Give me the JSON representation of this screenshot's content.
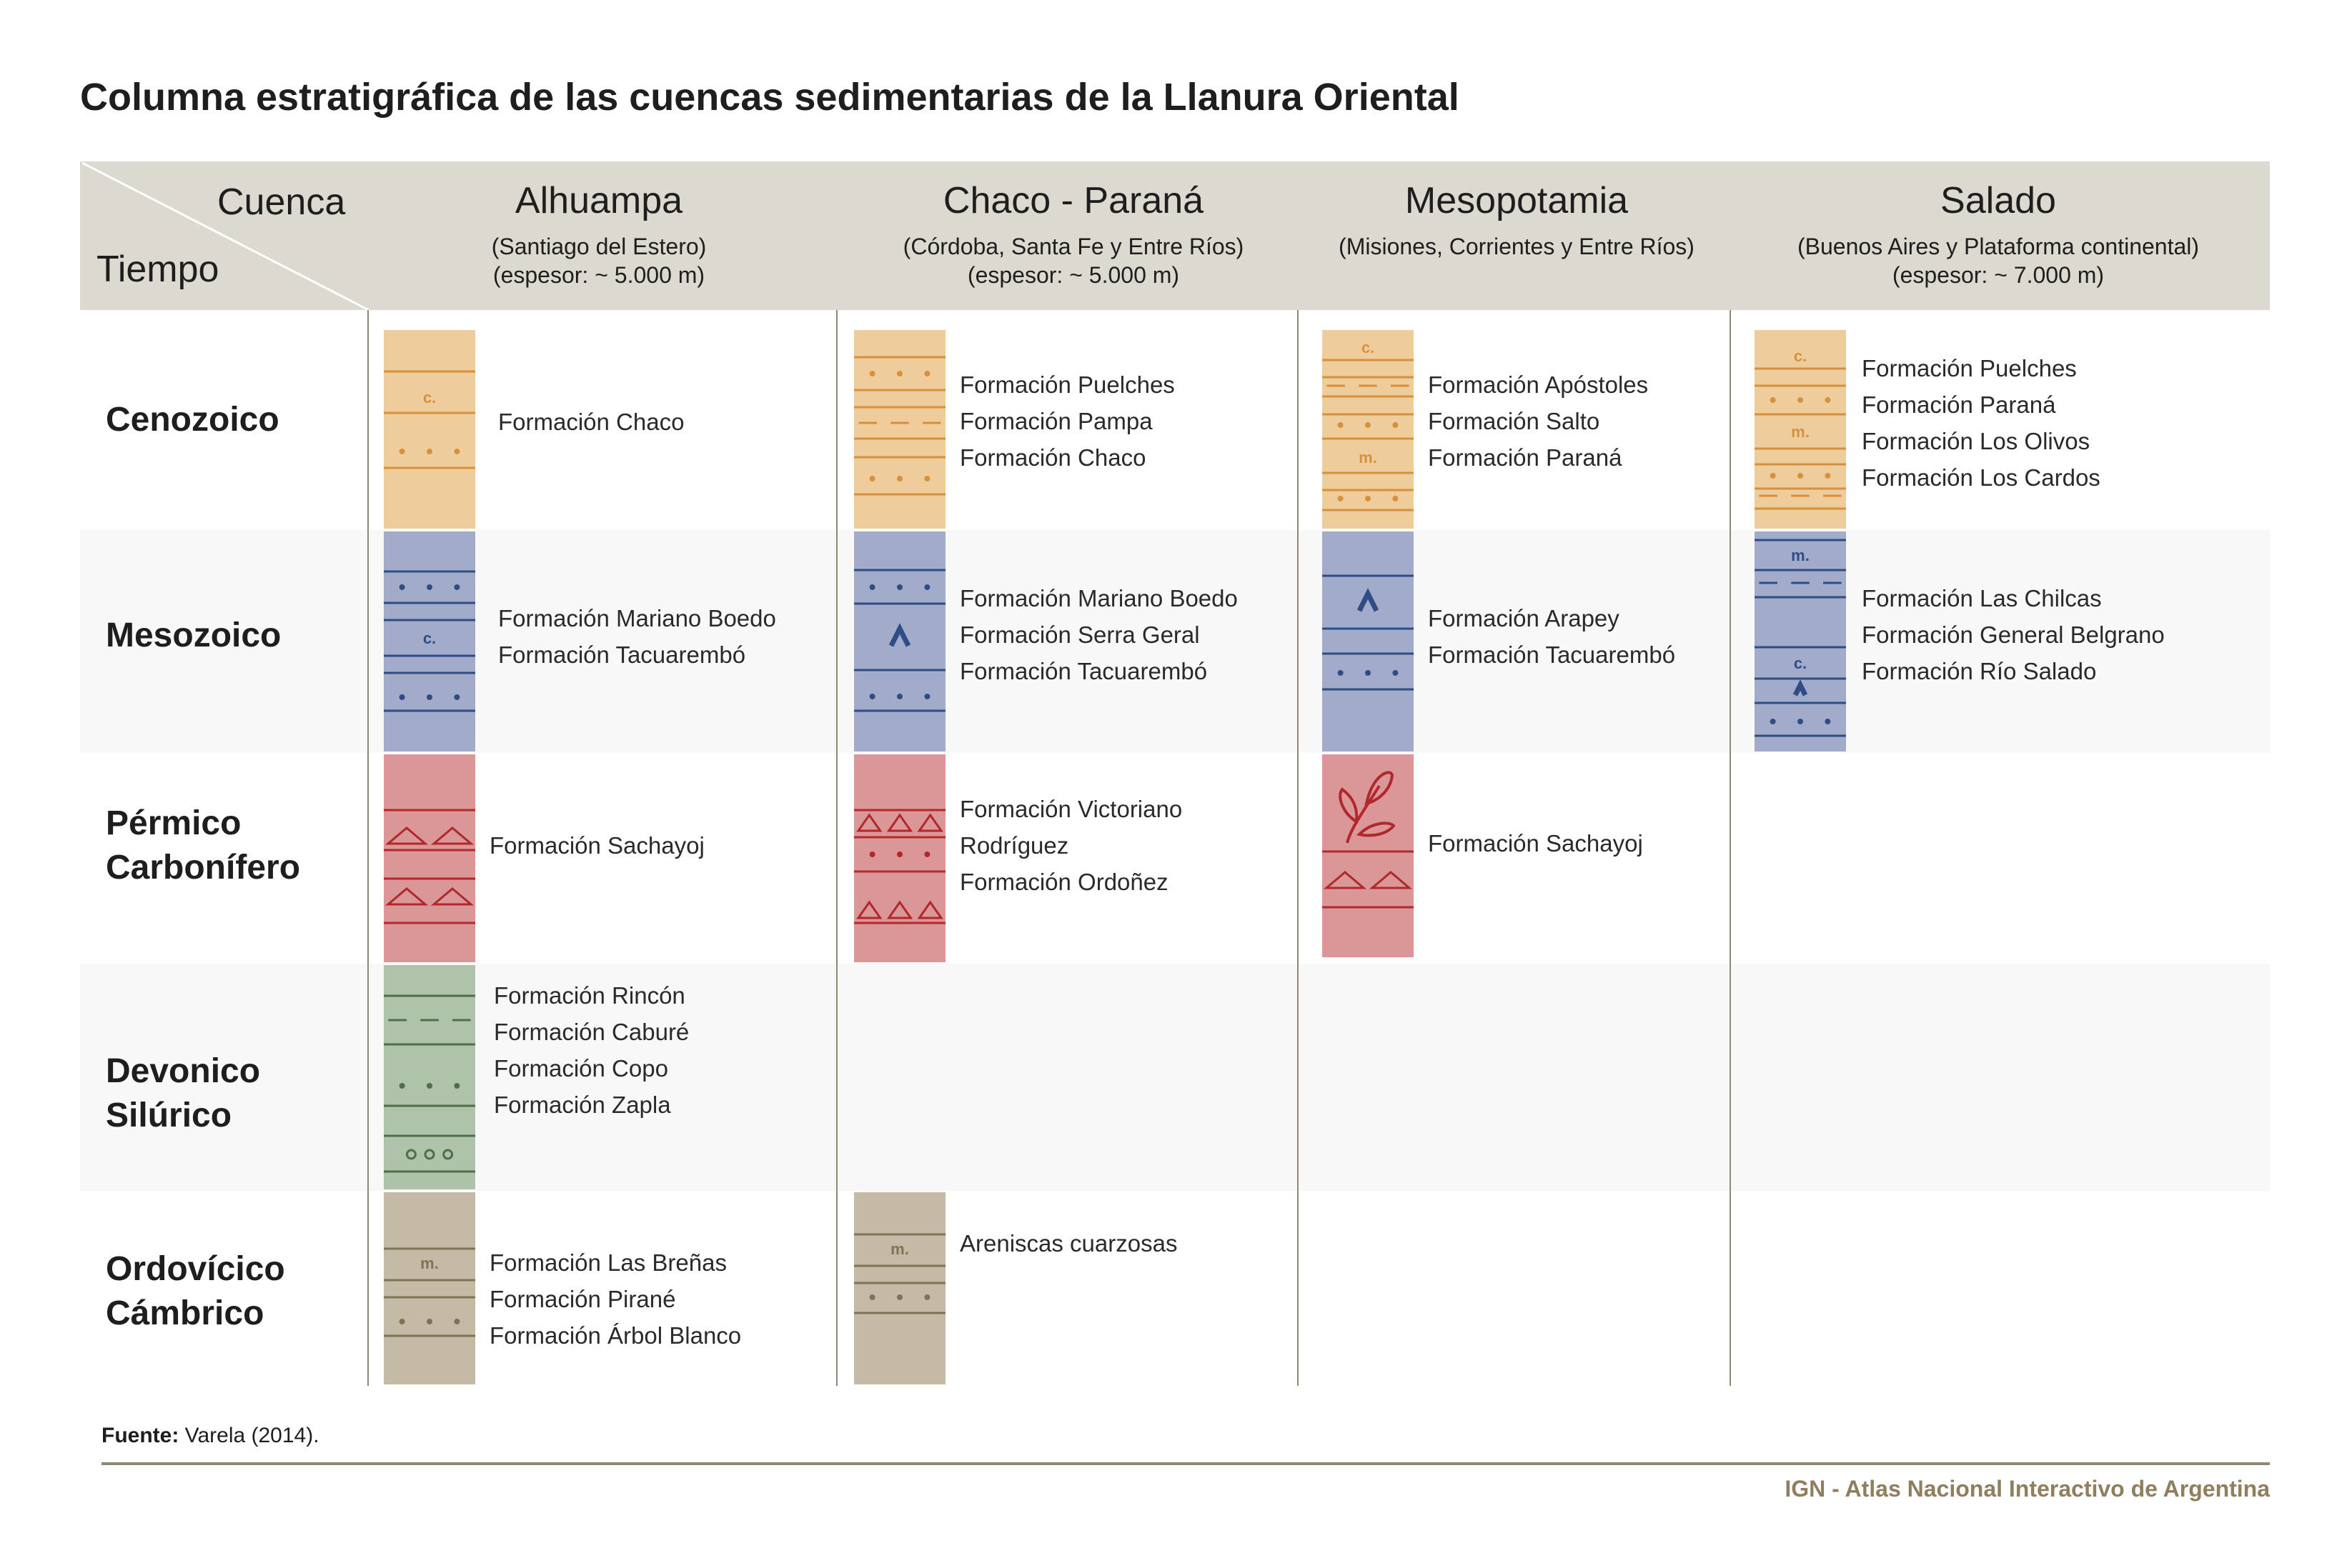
{
  "title": "Columna estratigráfica de las cuencas sedimentarias de la Llanura Oriental",
  "header": {
    "cuenca": "Cuenca",
    "tiempo": "Tiempo"
  },
  "basins": [
    {
      "name": "Alhuampa",
      "region": "(Santiago del Estero)",
      "thickness": "(espesor: ~ 5.000 m)"
    },
    {
      "name": "Chaco - Paraná",
      "region": "(Córdoba, Santa Fe y Entre Ríos)",
      "thickness": "(espesor: ~ 5.000 m)"
    },
    {
      "name": "Mesopotamia",
      "region": "(Misiones, Corrientes y Entre Ríos)",
      "thickness": ""
    },
    {
      "name": "Salado",
      "region": "(Buenos Aires y Plataforma continental)",
      "thickness": "(espesor: ~ 7.000 m)"
    }
  ],
  "eras": [
    {
      "line1": "Cenozoico",
      "line2": ""
    },
    {
      "line1": "Mesozoico",
      "line2": ""
    },
    {
      "line1": "Pérmico",
      "line2": "Carbonífero"
    },
    {
      "line1": "Devonico",
      "line2": "Silúrico"
    },
    {
      "line1": "Ordovícico",
      "line2": "Cámbrico"
    }
  ],
  "formations": {
    "alhuampa": {
      "cenozoico": [
        "Formación Chaco"
      ],
      "mesozoico": [
        "Formación Mariano Boedo",
        "Formación Tacuarembó"
      ],
      "permico": [
        "Formación Sachayoj"
      ],
      "devonico": [
        "Formación Rincón",
        "Formación Caburé",
        "Formación Copo",
        "Formación Zapla"
      ],
      "ordovicico": [
        "Formación Las Breñas",
        "Formación Pirané",
        "Formación Árbol Blanco"
      ]
    },
    "chaco": {
      "cenozoico": [
        "Formación Puelches",
        "Formación Pampa",
        "Formación Chaco"
      ],
      "mesozoico": [
        "Formación Mariano Boedo",
        "Formación Serra Geral",
        "Formación Tacuarembó"
      ],
      "permico": [
        "Formación Victoriano",
        "Rodríguez",
        "Formación Ordoñez"
      ],
      "ordovicico": [
        "Areniscas cuarzosas"
      ]
    },
    "mesopotamia": {
      "cenozoico": [
        "Formación Apóstoles",
        "Formación Salto",
        "Formación Paraná"
      ],
      "mesozoico": [
        "Formación Arapey",
        "Formación Tacuarembó"
      ],
      "permico": [
        "Formación Sachayoj"
      ]
    },
    "salado": {
      "cenozoico": [
        "Formación Puelches",
        "Formación Paraná",
        "Formación Los Olivos",
        "Formación Los Cardos"
      ],
      "mesozoico": [
        "Formación Las Chilcas",
        "Formación General Belgrano",
        "Formación Río Salado"
      ]
    }
  },
  "symbols": {
    "conglomerado": "c.",
    "marga": "m.",
    "basalto": "^"
  },
  "colors": {
    "cenozoico": "#efcc9c",
    "cenozoico_line": "#d7913c",
    "mesozoico": "#a3abca",
    "mesozoico_line": "#2e4d86",
    "permico": "#db9797",
    "permico_line": "#b0282c",
    "devonico": "#aec3aa",
    "devonico_line": "#4e6f4a",
    "ordovicico": "#c5baa6",
    "ordovicico_line": "#7d7455",
    "header": "#dcd9d0",
    "band": "#f8f8f8"
  },
  "source": {
    "label": "Fuente:",
    "text": "Varela (2014)."
  },
  "credit": "IGN - Atlas Nacional Interactivo de Argentina"
}
